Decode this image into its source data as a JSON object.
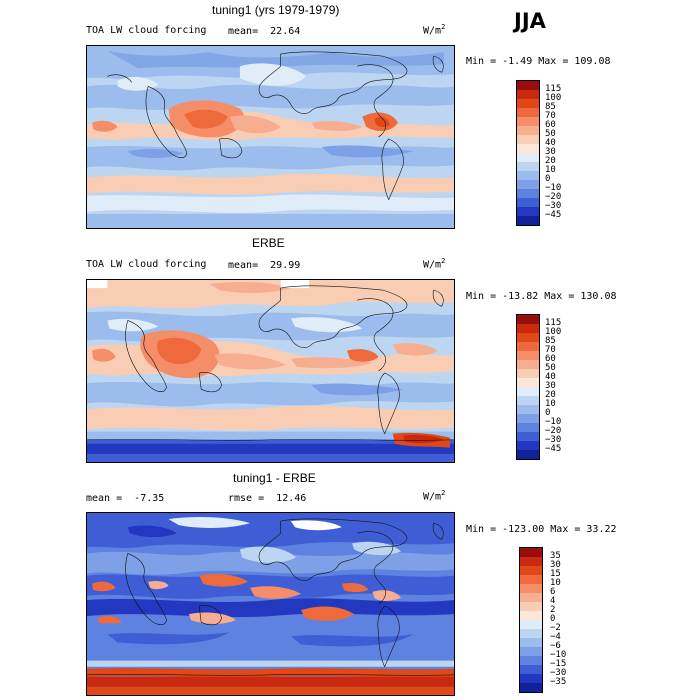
{
  "season": "JJA",
  "units_base": "W/m",
  "units_sup": "2",
  "panels": [
    {
      "title": "tuning1 (yrs 1979-1979)",
      "left_label": "TOA LW cloud forcing",
      "stat_label": "mean=",
      "stat_value": "22.64",
      "min_max": "Min =  -1.49 Max = 109.08",
      "levels": [
        "115",
        "100",
        "85",
        "70",
        "60",
        "50",
        "40",
        "30",
        "20",
        "10",
        "0",
        "−10",
        "−20",
        "−30",
        "−45"
      ],
      "colors": [
        "#9b0d0d",
        "#c8290f",
        "#e04818",
        "#ee6a3c",
        "#f48d68",
        "#f6ad90",
        "#f9cdb4",
        "#fbe6d8",
        "#e0ecf8",
        "#bcd5f1",
        "#9bbcec",
        "#7da0e6",
        "#5e82e0",
        "#3f5ed6",
        "#2338c0",
        "#10219a"
      ]
    },
    {
      "title": "ERBE",
      "left_label": "TOA LW cloud forcing",
      "stat_label": "mean=",
      "stat_value": "29.99",
      "min_max": "Min = -13.82 Max = 130.08",
      "levels": [
        "115",
        "100",
        "85",
        "70",
        "60",
        "50",
        "40",
        "30",
        "20",
        "10",
        "0",
        "−10",
        "−20",
        "−30",
        "−45"
      ],
      "colors": [
        "#9b0d0d",
        "#c8290f",
        "#e04818",
        "#ee6a3c",
        "#f48d68",
        "#f6ad90",
        "#f9cdb4",
        "#fbe6d8",
        "#e0ecf8",
        "#bcd5f1",
        "#9bbcec",
        "#7da0e6",
        "#5e82e0",
        "#3f5ed6",
        "#2338c0",
        "#10219a"
      ]
    },
    {
      "title": "tuning1 - ERBE",
      "mean_label": "mean =",
      "mean_value": "-7.35",
      "rmse_label": "rmse =",
      "rmse_value": "12.46",
      "min_max": "Min = -123.00 Max =  33.22",
      "levels": [
        "35",
        "30",
        "15",
        "10",
        "6",
        "4",
        "2",
        "0",
        "−2",
        "−4",
        "−6",
        "−10",
        "−15",
        "−30",
        "−35"
      ],
      "colors": [
        "#9b0d0d",
        "#c8290f",
        "#e04818",
        "#ee6a3c",
        "#f48d68",
        "#f6ad90",
        "#f9cdb4",
        "#fbe6d8",
        "#e0ecf8",
        "#bcd5f1",
        "#9bbcec",
        "#7da0e6",
        "#5e82e0",
        "#3f5ed6",
        "#2338c0",
        "#10219a"
      ]
    }
  ]
}
